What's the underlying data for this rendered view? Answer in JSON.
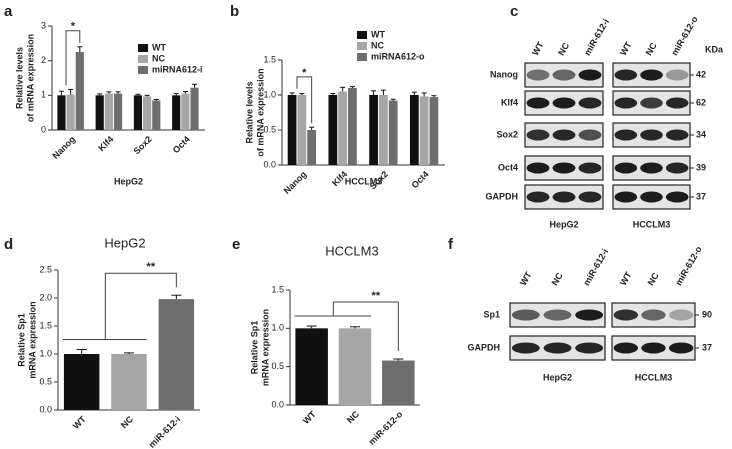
{
  "chart_data": [
    {
      "type": "grouped_bar",
      "panel": "a",
      "categories": [
        "Nanog",
        "Klf4",
        "Sox2",
        "Oct4"
      ],
      "series": [
        {
          "name": "WT",
          "color": "#111111",
          "values": [
            1.0,
            1.0,
            1.0,
            1.0
          ],
          "errors": [
            0.12,
            0.04,
            0.03,
            0.05
          ]
        },
        {
          "name": "NC",
          "color": "#a6a6a6",
          "values": [
            1.02,
            1.05,
            0.97,
            1.05
          ],
          "errors": [
            0.15,
            0.05,
            0.03,
            0.06
          ]
        },
        {
          "name": "miRNA612-i",
          "color": "#6e6e6e",
          "values": [
            2.25,
            1.05,
            0.85,
            1.22
          ],
          "errors": [
            0.15,
            0.05,
            0.03,
            0.1
          ]
        }
      ],
      "ylim": [
        0,
        3
      ],
      "yticks": [
        0,
        1,
        2,
        3
      ],
      "y_label": [
        "Relative levels",
        "of mRNA expression"
      ],
      "x_label": "HepG2",
      "annotation": "*"
    },
    {
      "type": "grouped_bar",
      "panel": "b",
      "categories": [
        "Nanog",
        "Klf4",
        "Sox2",
        "Oct4"
      ],
      "series": [
        {
          "name": "WT",
          "color": "#111111",
          "values": [
            1.0,
            1.0,
            1.0,
            1.0
          ],
          "errors": [
            0.03,
            0.02,
            0.06,
            0.04
          ]
        },
        {
          "name": "NC",
          "color": "#a6a6a6",
          "values": [
            1.0,
            1.05,
            1.0,
            0.98
          ],
          "errors": [
            0.02,
            0.06,
            0.07,
            0.05
          ]
        },
        {
          "name": "miRNA612-o",
          "color": "#6e6e6e",
          "values": [
            0.5,
            1.1,
            0.92,
            0.97
          ],
          "errors": [
            0.04,
            0.02,
            0.02,
            0.02
          ]
        }
      ],
      "ylim": [
        0,
        1.5
      ],
      "yticks": [
        {
          "value": 0,
          "label": "0.0"
        },
        {
          "value": 0.5,
          "label": "0.5"
        },
        {
          "value": 1,
          "label": "1.0"
        },
        {
          "value": 1.5,
          "label": "1.5"
        }
      ],
      "y_label": [
        "Relative levels",
        "of mRNA expression"
      ],
      "x_label": "HCCLM3",
      "annotation": "*"
    },
    {
      "type": "bar",
      "panel": "d",
      "title": "HepG2",
      "categories": [
        "WT",
        "NC",
        "miR-612-i"
      ],
      "values": [
        1.0,
        1.0,
        1.98
      ],
      "errors": [
        0.08,
        0.02,
        0.07
      ],
      "colors": [
        "#111111",
        "#a6a6a6",
        "#6e6e6e"
      ],
      "ylim": [
        0,
        2.5
      ],
      "yticks": [
        {
          "value": 0,
          "label": "0.0"
        },
        {
          "value": 0.5,
          "label": "0.5"
        },
        {
          "value": 1,
          "label": "1.0"
        },
        {
          "value": 1.5,
          "label": "1.5"
        },
        {
          "value": 2,
          "label": "2.0"
        },
        {
          "value": 2.5,
          "label": "2.5"
        }
      ],
      "y_label": [
        "Relative Sp1",
        "mRNA expression"
      ],
      "annotation": "**"
    },
    {
      "type": "bar",
      "panel": "e",
      "title": "HCCLM3",
      "categories": [
        "WT",
        "NC",
        "miR-612-o"
      ],
      "values": [
        1.0,
        1.0,
        0.58
      ],
      "errors": [
        0.03,
        0.02,
        0.02
      ],
      "colors": [
        "#111111",
        "#a6a6a6",
        "#6e6e6e"
      ],
      "ylim": [
        0,
        1.5
      ],
      "yticks": [
        {
          "value": 0,
          "label": "0.0"
        },
        {
          "value": 0.5,
          "label": "0.5"
        },
        {
          "value": 1,
          "label": "1.0"
        },
        {
          "value": 1.5,
          "label": "1.5"
        }
      ],
      "y_label": [
        "Relative Sp1",
        "mRNA expression"
      ],
      "annotation": "**"
    }
  ],
  "blots": [
    {
      "panel": "c",
      "columns": [
        [
          "WT",
          "NC",
          "miR-612-i"
        ],
        [
          "WT",
          "NC",
          "miR-612-o"
        ]
      ],
      "rows": [
        "Nanog",
        "Klf4",
        "Sox2",
        "Oct4",
        "GAPDH"
      ],
      "sizes": [
        "42",
        "62",
        "34",
        "39",
        "37"
      ],
      "unit": "KDa",
      "cell_lines": [
        "HepG2",
        "HCCLM3"
      ]
    },
    {
      "panel": "f",
      "columns": [
        [
          "WT",
          "NC",
          "miR-612-i"
        ],
        [
          "WT",
          "NC",
          "miR-612-o"
        ]
      ],
      "rows": [
        "Sp1",
        "GAPDH"
      ],
      "sizes": [
        "90",
        "37"
      ],
      "cell_lines": [
        "HepG2",
        "HCCLM3"
      ]
    }
  ]
}
